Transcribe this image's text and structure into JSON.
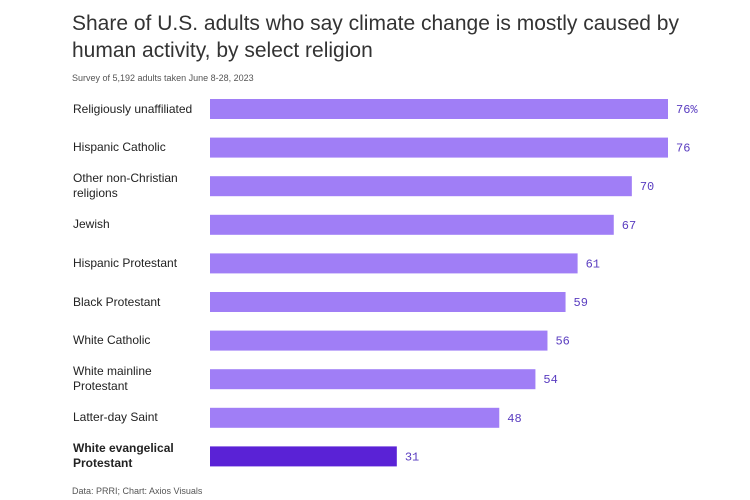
{
  "chart_data": {
    "type": "bar",
    "orientation": "horizontal",
    "title": "Share of U.S. adults who say climate change is mostly caused by human activity, by select religion",
    "subtitle": "Survey of 5,192 adults taken June 8-28, 2023",
    "source": "Data: PRRI; Chart: Axios Visuals",
    "categories": [
      "Religiously unaffiliated",
      "Hispanic Catholic",
      "Other non-Christian religions",
      "Jewish",
      "Hispanic Protestant",
      "Black Protestant",
      "White Catholic",
      "White mainline Protestant",
      "Latter-day Saint",
      "White evangelical Protestant"
    ],
    "values": [
      76,
      76,
      70,
      67,
      61,
      59,
      56,
      54,
      48,
      31
    ],
    "value_labels": [
      "76%",
      "76",
      "70",
      "67",
      "61",
      "59",
      "56",
      "54",
      "48",
      "31"
    ],
    "highlight": "White evangelical Protestant",
    "xlim": [
      0,
      76
    ],
    "colors": {
      "bar": "#a07ef6",
      "highlight": "#5a22d6",
      "label": "#5a3dc0"
    }
  }
}
